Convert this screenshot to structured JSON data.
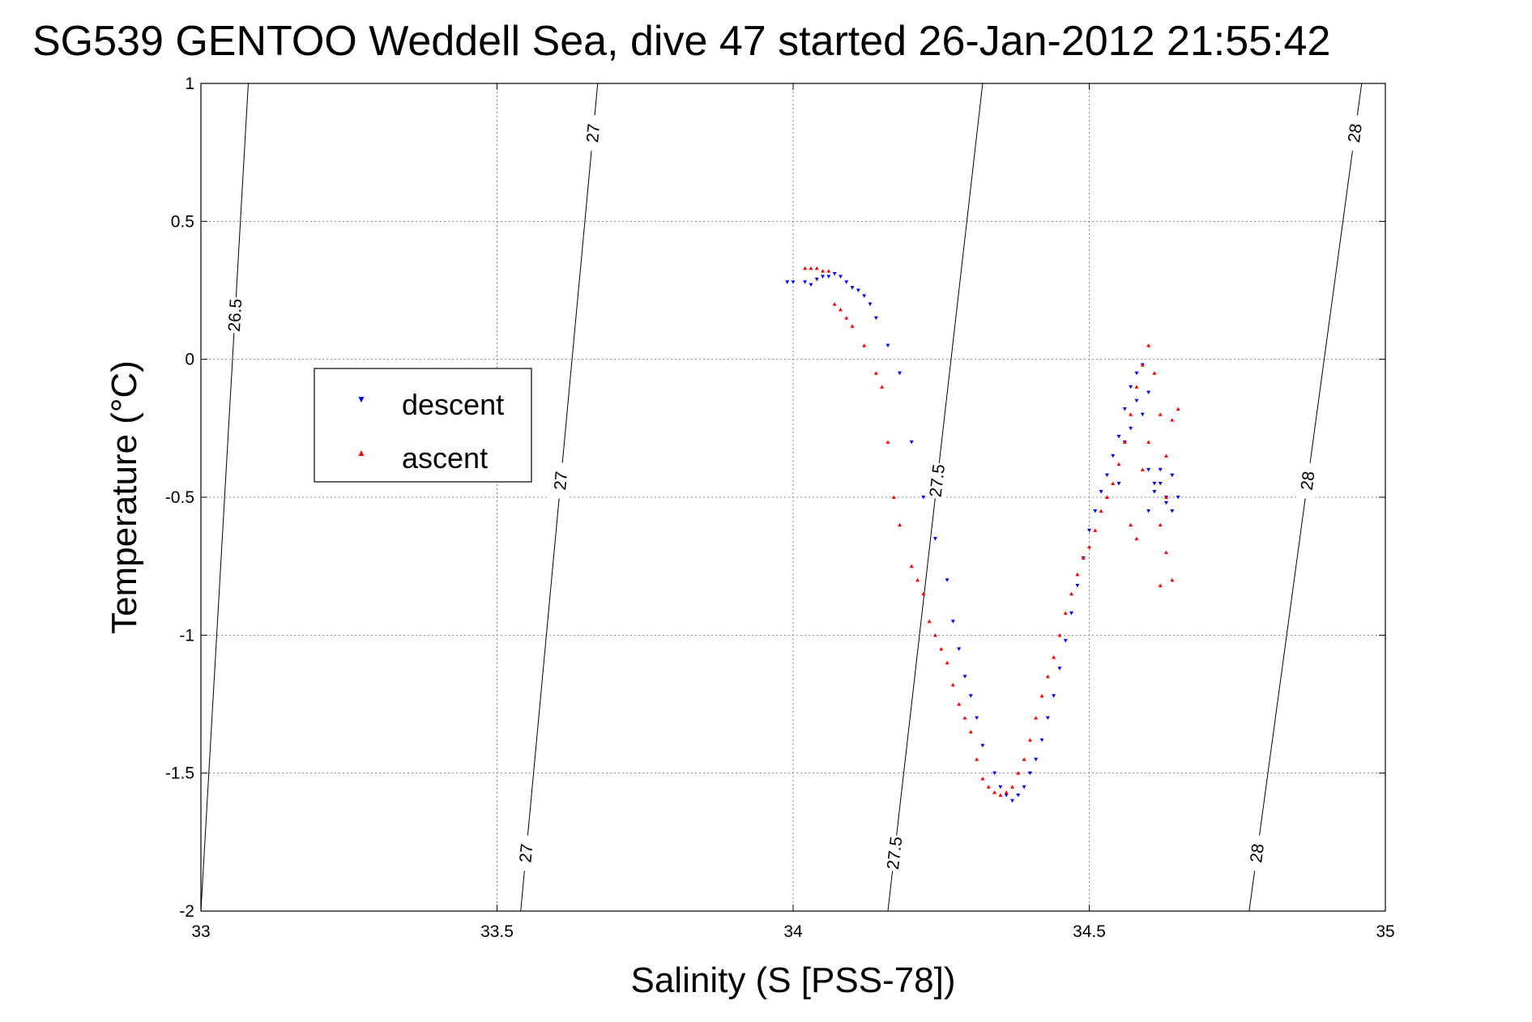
{
  "chart_data": {
    "type": "scatter",
    "title": "SG539 GENTOO Weddell Sea, dive 47 started 26-Jan-2012 21:55:42",
    "xlabel": "Salinity (S [PSS-78])",
    "ylabel": "Temperature (°C)",
    "xlim": [
      33,
      35
    ],
    "ylim": [
      -2,
      1
    ],
    "grid": true,
    "legend_position": "middle-left",
    "x_ticks": [
      "33",
      "33.5",
      "34",
      "34.5",
      "35"
    ],
    "y_ticks": [
      "1",
      "0.5",
      "0",
      "-0.5",
      "-1",
      "-1.5",
      "-2"
    ],
    "legend": [
      "descent",
      "ascent"
    ],
    "series": [
      {
        "name": "descent",
        "color": "#0000ff",
        "marker": "triangle-down",
        "x": [
          33.99,
          34.0,
          34.02,
          34.03,
          34.04,
          34.05,
          34.06,
          34.07,
          34.08,
          34.09,
          34.1,
          34.11,
          34.12,
          34.13,
          34.14,
          34.16,
          34.18,
          34.2,
          34.22,
          34.24,
          34.26,
          34.27,
          34.28,
          34.29,
          34.3,
          34.31,
          34.32,
          34.34,
          34.35,
          34.36,
          34.37,
          34.38,
          34.39,
          34.4,
          34.41,
          34.42,
          34.43,
          34.44,
          34.45,
          34.46,
          34.47,
          34.48,
          34.49,
          34.5,
          34.51,
          34.52,
          34.53,
          34.54,
          34.55,
          34.56,
          34.57,
          34.58,
          34.59,
          34.6,
          34.61,
          34.62,
          34.63,
          34.64,
          34.65,
          34.6,
          34.61,
          34.62,
          34.63,
          34.64,
          34.58,
          34.57,
          34.56,
          34.55,
          34.59,
          34.6
        ],
        "y": [
          0.28,
          0.28,
          0.28,
          0.27,
          0.29,
          0.3,
          0.3,
          0.31,
          0.3,
          0.28,
          0.26,
          0.25,
          0.23,
          0.2,
          0.15,
          0.05,
          -0.05,
          -0.3,
          -0.5,
          -0.65,
          -0.8,
          -0.95,
          -1.05,
          -1.15,
          -1.22,
          -1.3,
          -1.4,
          -1.5,
          -1.55,
          -1.58,
          -1.6,
          -1.58,
          -1.55,
          -1.5,
          -1.45,
          -1.38,
          -1.3,
          -1.22,
          -1.12,
          -1.02,
          -0.92,
          -0.82,
          -0.72,
          -0.62,
          -0.55,
          -0.48,
          -0.42,
          -0.35,
          -0.28,
          -0.18,
          -0.1,
          -0.05,
          -0.2,
          -0.4,
          -0.48,
          -0.45,
          -0.5,
          -0.42,
          -0.5,
          -0.55,
          -0.45,
          -0.4,
          -0.52,
          -0.55,
          -0.15,
          -0.25,
          -0.3,
          -0.45,
          -0.02,
          -0.12
        ]
      },
      {
        "name": "ascent",
        "color": "#ff0000",
        "marker": "triangle-up",
        "x": [
          34.02,
          34.03,
          34.04,
          34.05,
          34.06,
          34.07,
          34.08,
          34.09,
          34.1,
          34.12,
          34.14,
          34.15,
          34.16,
          34.17,
          34.18,
          34.2,
          34.21,
          34.22,
          34.23,
          34.24,
          34.25,
          34.26,
          34.27,
          34.28,
          34.29,
          34.3,
          34.31,
          34.32,
          34.33,
          34.34,
          34.35,
          34.36,
          34.37,
          34.38,
          34.39,
          34.4,
          34.41,
          34.42,
          34.43,
          34.44,
          34.45,
          34.46,
          34.47,
          34.48,
          34.49,
          34.5,
          34.51,
          34.52,
          34.53,
          34.54,
          34.55,
          34.56,
          34.57,
          34.58,
          34.59,
          34.6,
          34.61,
          34.62,
          34.63,
          34.64,
          34.65,
          34.62,
          34.63,
          34.64,
          34.62,
          34.63,
          34.57,
          34.58,
          34.59,
          34.6
        ],
        "y": [
          0.33,
          0.33,
          0.33,
          0.32,
          0.32,
          0.2,
          0.18,
          0.15,
          0.12,
          0.05,
          -0.05,
          -0.1,
          -0.3,
          -0.5,
          -0.6,
          -0.75,
          -0.8,
          -0.85,
          -0.95,
          -1.0,
          -1.05,
          -1.1,
          -1.18,
          -1.25,
          -1.3,
          -1.35,
          -1.45,
          -1.52,
          -1.55,
          -1.57,
          -1.58,
          -1.57,
          -1.55,
          -1.5,
          -1.45,
          -1.38,
          -1.3,
          -1.22,
          -1.15,
          -1.08,
          -1.0,
          -0.92,
          -0.85,
          -0.78,
          -0.72,
          -0.68,
          -0.62,
          -0.55,
          -0.5,
          -0.45,
          -0.38,
          -0.3,
          -0.2,
          -0.1,
          -0.02,
          0.05,
          -0.05,
          -0.2,
          -0.35,
          -0.22,
          -0.18,
          -0.6,
          -0.7,
          -0.8,
          -0.82,
          -0.5,
          -0.6,
          -0.65,
          -0.4,
          -0.3
        ]
      }
    ],
    "contours": [
      {
        "level": "26.5",
        "x_bottom": 33.0,
        "x_top": 33.08,
        "labels": [
          "26.5"
        ]
      },
      {
        "level": "27",
        "x_bottom": 33.54,
        "x_top": 33.67,
        "labels": [
          "27",
          "27",
          "27"
        ]
      },
      {
        "level": "27.5",
        "x_bottom": 34.16,
        "x_top": 34.32,
        "labels": [
          "27.5",
          "27.5"
        ]
      },
      {
        "level": "28",
        "x_bottom": 34.77,
        "x_top": 34.96,
        "labels": [
          "28",
          "28",
          "28"
        ]
      }
    ]
  }
}
